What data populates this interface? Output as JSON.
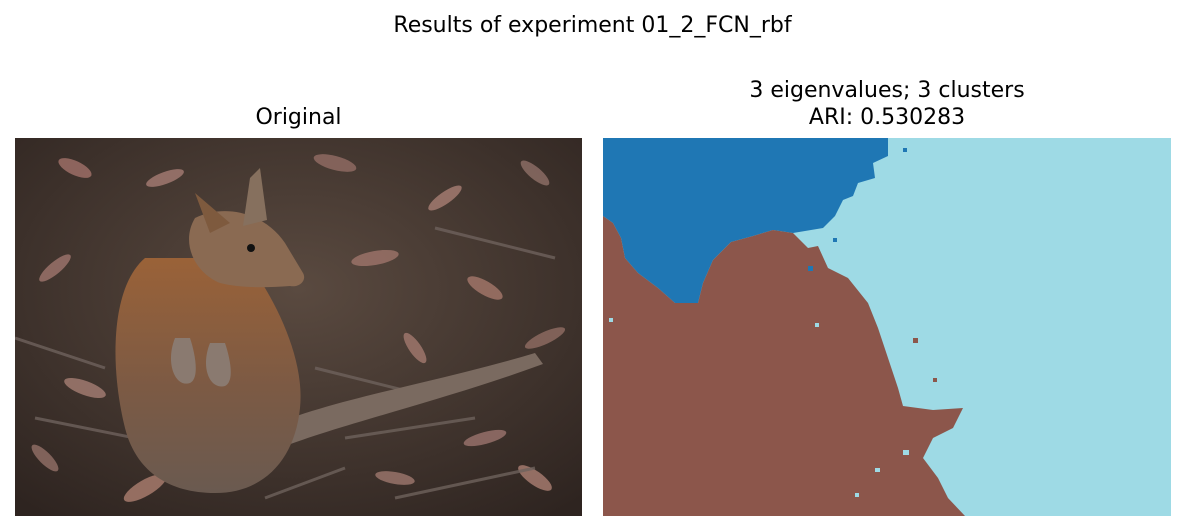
{
  "figure": {
    "suptitle": "Results of experiment 01_2_FCN_rbf"
  },
  "left_panel": {
    "title": "Original"
  },
  "right_panel": {
    "title_line1": "3 eigenvalues; 3 clusters",
    "title_line2": "ARI: 0.530283"
  },
  "colors": {
    "cluster_blue": "#1f77b4",
    "cluster_brown": "#8c564b",
    "cluster_cyan": "#9edae5",
    "leaf_litter_dark": "#3a2e28",
    "wallaby_fur": "#8a5a38"
  }
}
